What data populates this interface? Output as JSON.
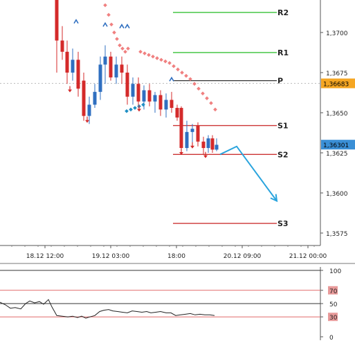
{
  "chart_data": [
    {
      "type": "candlestick",
      "x_tick_labels": [
        "18.12 12:00",
        "19.12 03:00",
        "18:00",
        "20.12 09:00",
        "21.12 00:00"
      ],
      "y_tick_labels": [
        "1,3700",
        "1,3675",
        "1,3650",
        "1,3625",
        "1,3600",
        "1,3575"
      ],
      "ylim": [
        1.3562,
        1.3728
      ],
      "y_ticks": [
        1.37,
        1.3675,
        1.365,
        1.3625,
        1.36,
        1.3575
      ],
      "x_ticks": [
        65,
        160,
        255,
        350,
        445
      ],
      "price_markers": [
        {
          "label": "1,36683",
          "value": 1.36683,
          "color": "#f5a623"
        },
        {
          "label": "1,36301",
          "value": 1.36301,
          "color": "#3a8fd6"
        }
      ],
      "pivot_levels": [
        {
          "name": "R2",
          "value": 1.37125,
          "color": "#22bb22",
          "x_start": 250
        },
        {
          "name": "R1",
          "value": 1.36875,
          "color": "#22bb22",
          "x_start": 250
        },
        {
          "name": "P",
          "value": 1.367,
          "color": "#333333",
          "x_start": 250
        },
        {
          "name": "S1",
          "value": 1.3642,
          "color": "#cc3333",
          "x_start": 250
        },
        {
          "name": "S2",
          "value": 1.3624,
          "color": "#cc3333",
          "x_start": 250
        },
        {
          "name": "S3",
          "value": 1.3581,
          "color": "#cc3333",
          "x_start": 250
        }
      ],
      "candles": [
        {
          "x": 82,
          "o": 1.3728,
          "h": 1.3728,
          "l": 1.3675,
          "c": 1.3695
        },
        {
          "x": 90,
          "o": 1.3695,
          "h": 1.3704,
          "l": 1.3683,
          "c": 1.3688
        },
        {
          "x": 97,
          "o": 1.3688,
          "h": 1.3695,
          "l": 1.3668,
          "c": 1.3675
        },
        {
          "x": 105,
          "o": 1.3675,
          "h": 1.369,
          "l": 1.367,
          "c": 1.3683
        },
        {
          "x": 113,
          "o": 1.3683,
          "h": 1.3688,
          "l": 1.366,
          "c": 1.3665
        },
        {
          "x": 121,
          "o": 1.367,
          "h": 1.3675,
          "l": 1.3645,
          "c": 1.3648
        },
        {
          "x": 129,
          "o": 1.3648,
          "h": 1.366,
          "l": 1.3643,
          "c": 1.3655
        },
        {
          "x": 137,
          "o": 1.3655,
          "h": 1.3668,
          "l": 1.3653,
          "c": 1.3663
        },
        {
          "x": 145,
          "o": 1.3663,
          "h": 1.3685,
          "l": 1.3658,
          "c": 1.368
        },
        {
          "x": 152,
          "o": 1.368,
          "h": 1.3692,
          "l": 1.3668,
          "c": 1.3685
        },
        {
          "x": 160,
          "o": 1.3685,
          "h": 1.3688,
          "l": 1.367,
          "c": 1.3672
        },
        {
          "x": 168,
          "o": 1.3672,
          "h": 1.3685,
          "l": 1.3668,
          "c": 1.368
        },
        {
          "x": 176,
          "o": 1.368,
          "h": 1.3685,
          "l": 1.3668,
          "c": 1.3675
        },
        {
          "x": 184,
          "o": 1.3675,
          "h": 1.368,
          "l": 1.3655,
          "c": 1.366
        },
        {
          "x": 192,
          "o": 1.366,
          "h": 1.3672,
          "l": 1.3655,
          "c": 1.3668
        },
        {
          "x": 200,
          "o": 1.3668,
          "h": 1.3672,
          "l": 1.3653,
          "c": 1.3657
        },
        {
          "x": 208,
          "o": 1.3657,
          "h": 1.3667,
          "l": 1.3652,
          "c": 1.3664
        },
        {
          "x": 216,
          "o": 1.3664,
          "h": 1.3668,
          "l": 1.3654,
          "c": 1.3657
        },
        {
          "x": 224,
          "o": 1.3657,
          "h": 1.3663,
          "l": 1.365,
          "c": 1.3661
        },
        {
          "x": 232,
          "o": 1.3661,
          "h": 1.3664,
          "l": 1.3648,
          "c": 1.3652
        },
        {
          "x": 240,
          "o": 1.3652,
          "h": 1.3662,
          "l": 1.3647,
          "c": 1.3658
        },
        {
          "x": 248,
          "o": 1.3658,
          "h": 1.3663,
          "l": 1.365,
          "c": 1.3653
        },
        {
          "x": 256,
          "o": 1.3653,
          "h": 1.3655,
          "l": 1.3645,
          "c": 1.3647
        },
        {
          "x": 262,
          "o": 1.3653,
          "h": 1.3654,
          "l": 1.3625,
          "c": 1.3628
        },
        {
          "x": 270,
          "o": 1.3628,
          "h": 1.3645,
          "l": 1.3626,
          "c": 1.3638
        },
        {
          "x": 278,
          "o": 1.3638,
          "h": 1.3643,
          "l": 1.363,
          "c": 1.364
        },
        {
          "x": 286,
          "o": 1.3642,
          "h": 1.3644,
          "l": 1.3629,
          "c": 1.3632
        },
        {
          "x": 294,
          "o": 1.3632,
          "h": 1.3635,
          "l": 1.3624,
          "c": 1.3628
        },
        {
          "x": 301,
          "o": 1.3628,
          "h": 1.3636,
          "l": 1.3625,
          "c": 1.3634
        },
        {
          "x": 307,
          "o": 1.3634,
          "h": 1.3636,
          "l": 1.3625,
          "c": 1.3627
        },
        {
          "x": 313,
          "o": 1.3627,
          "h": 1.3634,
          "l": 1.3626,
          "c": 1.363
        }
      ],
      "parabolic_sar": [
        {
          "x": 152,
          "y": 1.3717
        },
        {
          "x": 157,
          "y": 1.3711
        },
        {
          "x": 161,
          "y": 1.3705
        },
        {
          "x": 165,
          "y": 1.37
        },
        {
          "x": 169,
          "y": 1.3696
        },
        {
          "x": 173,
          "y": 1.3692
        },
        {
          "x": 177,
          "y": 1.369
        },
        {
          "x": 181,
          "y": 1.3688
        },
        {
          "x": 185,
          "y": 1.369
        },
        {
          "x": 203,
          "y": 1.3688
        },
        {
          "x": 209,
          "y": 1.3687
        },
        {
          "x": 215,
          "y": 1.3686
        },
        {
          "x": 221,
          "y": 1.3685
        },
        {
          "x": 227,
          "y": 1.3684
        },
        {
          "x": 233,
          "y": 1.3683
        },
        {
          "x": 239,
          "y": 1.3682
        },
        {
          "x": 245,
          "y": 1.3681
        },
        {
          "x": 251,
          "y": 1.3679
        },
        {
          "x": 257,
          "y": 1.3677
        },
        {
          "x": 263,
          "y": 1.3675
        },
        {
          "x": 269,
          "y": 1.3673
        },
        {
          "x": 275,
          "y": 1.3671
        },
        {
          "x": 281,
          "y": 1.3668
        },
        {
          "x": 287,
          "y": 1.3665
        },
        {
          "x": 293,
          "y": 1.3662
        },
        {
          "x": 299,
          "y": 1.3659
        },
        {
          "x": 305,
          "y": 1.3656
        },
        {
          "x": 311,
          "y": 1.3652
        }
      ],
      "blue_dots": [
        {
          "x": 183,
          "y": 1.3651
        },
        {
          "x": 189,
          "y": 1.3652
        },
        {
          "x": 195,
          "y": 1.3653
        },
        {
          "x": 201,
          "y": 1.3654
        },
        {
          "x": 207,
          "y": 1.3655
        }
      ],
      "fractals_up": [
        {
          "x": 110,
          "y": 1.3707
        },
        {
          "x": 152,
          "y": 1.3705
        },
        {
          "x": 176,
          "y": 1.3704
        },
        {
          "x": 184,
          "y": 1.3704
        },
        {
          "x": 248,
          "y": 1.3671
        }
      ],
      "fractals_down": [
        {
          "x": 101,
          "y": 1.3664
        },
        {
          "x": 126,
          "y": 1.3645
        },
        {
          "x": 201,
          "y": 1.3652
        },
        {
          "x": 262,
          "y": 1.3625
        },
        {
          "x": 278,
          "y": 1.3629
        },
        {
          "x": 297,
          "y": 1.3623
        }
      ],
      "forecast_arrow": [
        {
          "x": 318,
          "y": 1.3624
        },
        {
          "x": 342,
          "y": 1.3629
        },
        {
          "x": 400,
          "y": 1.3595
        }
      ]
    },
    {
      "type": "line",
      "indicator": "oscillator",
      "ylim": [
        0,
        100
      ],
      "y_tick_labels": [
        "100",
        "70",
        "50",
        "30",
        "0"
      ],
      "y_ticks": [
        100,
        70,
        50,
        30,
        0
      ],
      "levels": [
        {
          "value": 100,
          "color": "#333333"
        },
        {
          "value": 70,
          "color": "#e26a6a"
        },
        {
          "value": 50,
          "color": "#333333"
        },
        {
          "value": 30,
          "color": "#e26a6a"
        }
      ],
      "series": [
        {
          "values": [
            [
              0,
              52
            ],
            [
              8,
              48
            ],
            [
              15,
              43
            ],
            [
              22,
              44
            ],
            [
              30,
              42
            ],
            [
              37,
              50
            ],
            [
              43,
              54
            ],
            [
              50,
              51
            ],
            [
              57,
              53
            ],
            [
              63,
              49
            ],
            [
              70,
              56
            ],
            [
              75,
              45
            ],
            [
              82,
              32
            ],
            [
              90,
              31
            ],
            [
              98,
              30
            ],
            [
              105,
              31
            ],
            [
              112,
              29
            ],
            [
              118,
              31
            ],
            [
              124,
              28
            ],
            [
              130,
              30
            ],
            [
              137,
              32
            ],
            [
              144,
              38
            ],
            [
              150,
              40
            ],
            [
              157,
              41
            ],
            [
              163,
              39
            ],
            [
              170,
              38
            ],
            [
              177,
              37
            ],
            [
              184,
              36
            ],
            [
              191,
              39
            ],
            [
              198,
              38
            ],
            [
              205,
              37
            ],
            [
              212,
              38
            ],
            [
              218,
              36
            ],
            [
              225,
              37
            ],
            [
              232,
              38
            ],
            [
              240,
              36
            ],
            [
              247,
              36
            ],
            [
              254,
              32
            ],
            [
              261,
              33
            ],
            [
              268,
              34
            ],
            [
              275,
              35
            ],
            [
              282,
              33
            ],
            [
              289,
              34
            ],
            [
              296,
              33
            ],
            [
              303,
              33
            ],
            [
              310,
              32
            ]
          ]
        }
      ]
    }
  ]
}
